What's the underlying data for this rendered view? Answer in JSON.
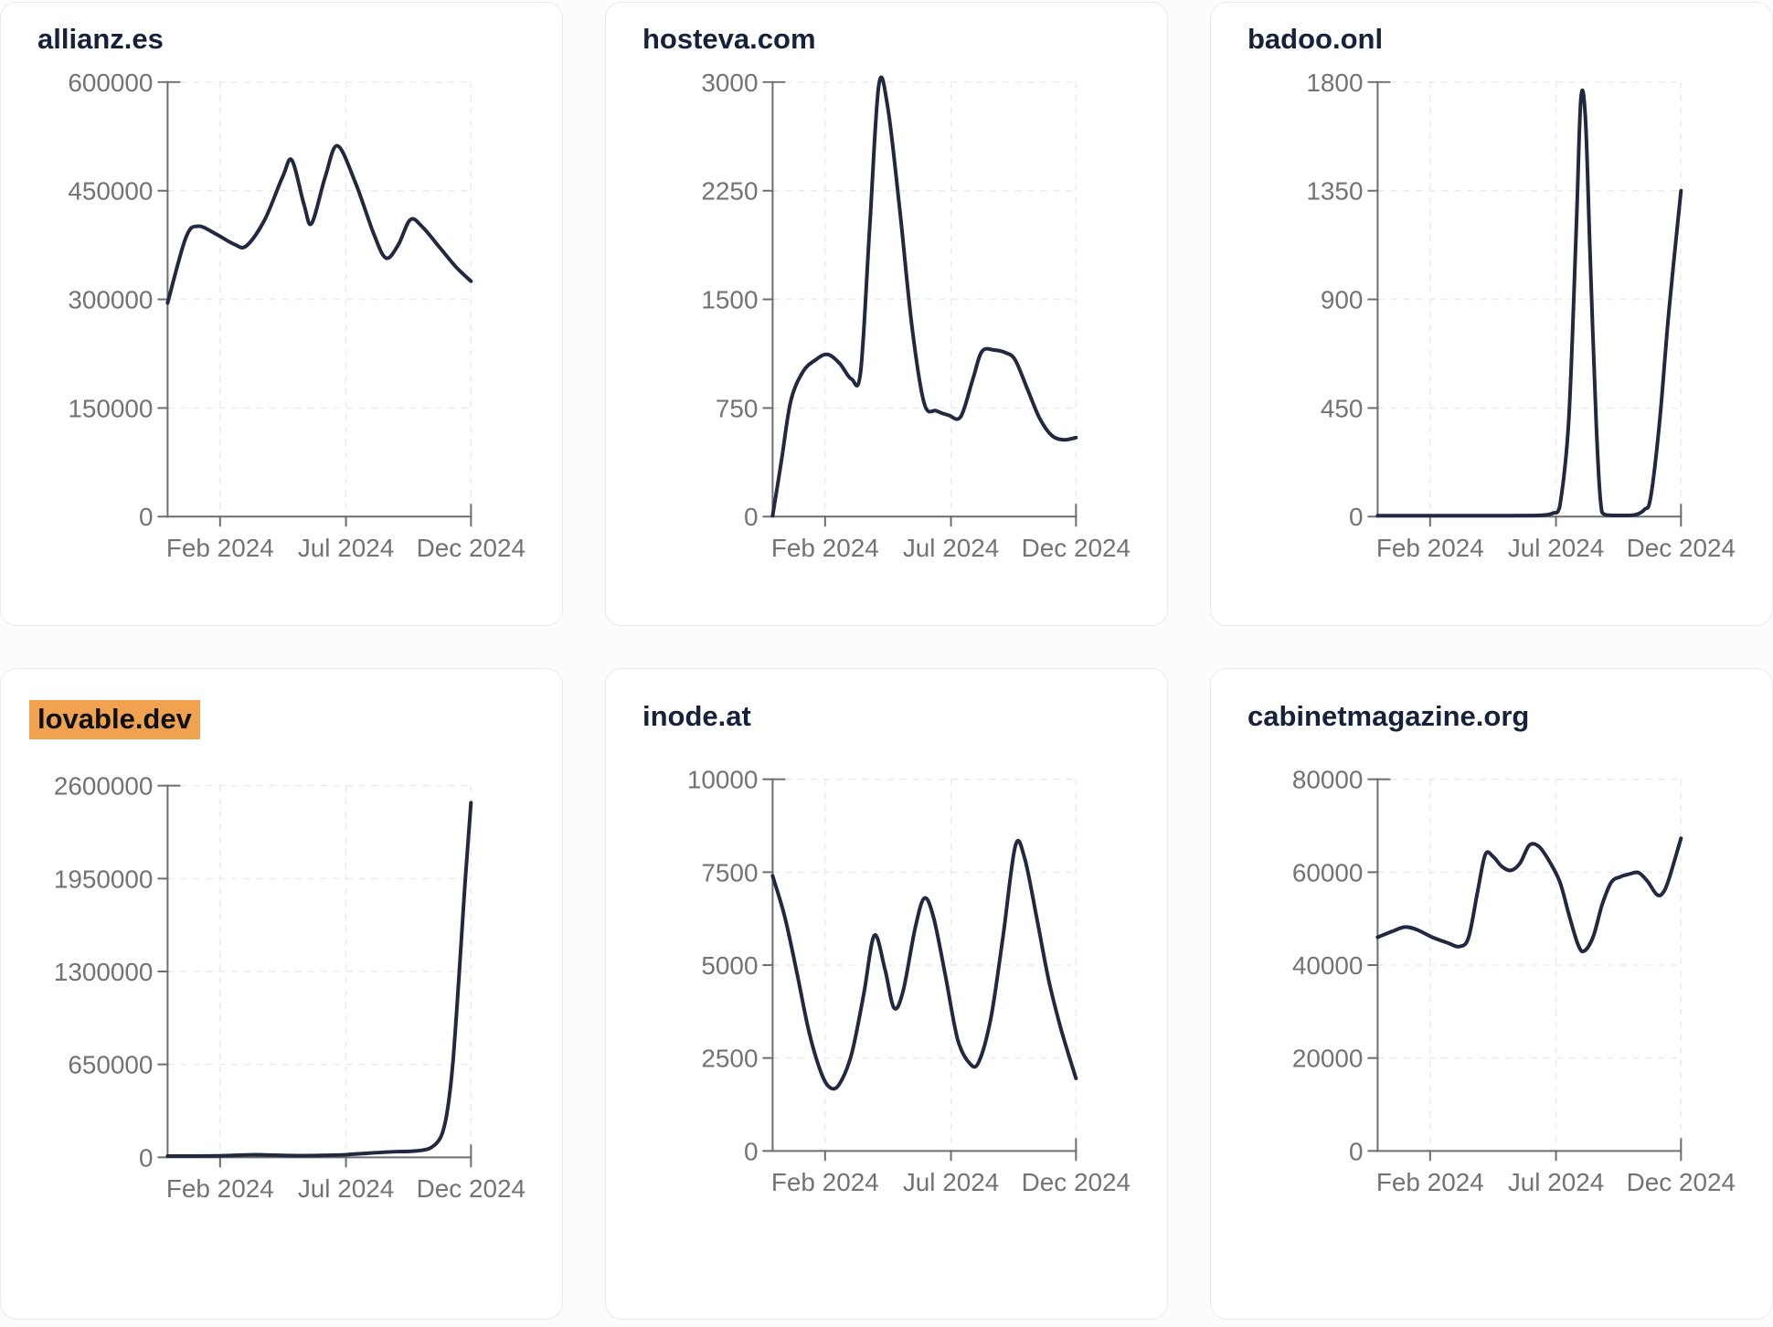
{
  "page": {
    "background": "#fcfcfd",
    "card_background": "#ffffff",
    "card_border_color": "#e8eaf2",
    "title_color": "#16213b",
    "highlight_color": "#f0a24f",
    "series_color": "#222840",
    "axis_color": "#6d6d6d",
    "tick_label_color": "#737373",
    "x_tick_labels": [
      "Feb 2024",
      "Jul 2024",
      "Dec 2024"
    ]
  },
  "chart_data": [
    {
      "type": "line",
      "title": "allianz.es",
      "highlighted": false,
      "xlabel": "",
      "ylabel": "",
      "ylim": [
        0,
        600000
      ],
      "y_ticks": [
        0,
        150000,
        300000,
        450000,
        600000
      ],
      "x_ticks": [
        {
          "label": "Feb 2024",
          "f": 0.173
        },
        {
          "label": "Jul 2024",
          "f": 0.588
        },
        {
          "label": "Dec 2024",
          "f": 1.0
        }
      ],
      "grid": true,
      "legend": "none",
      "points": [
        [
          0.0,
          295000
        ],
        [
          0.06,
          385000
        ],
        [
          0.1,
          401000
        ],
        [
          0.16,
          390000
        ],
        [
          0.22,
          376000
        ],
        [
          0.26,
          374000
        ],
        [
          0.32,
          410000
        ],
        [
          0.38,
          470000
        ],
        [
          0.41,
          492000
        ],
        [
          0.45,
          430000
        ],
        [
          0.475,
          405000
        ],
        [
          0.52,
          470000
        ],
        [
          0.56,
          512000
        ],
        [
          0.62,
          460000
        ],
        [
          0.68,
          390000
        ],
        [
          0.72,
          357000
        ],
        [
          0.76,
          375000
        ],
        [
          0.8,
          410000
        ],
        [
          0.84,
          400000
        ],
        [
          0.9,
          370000
        ],
        [
          0.95,
          345000
        ],
        [
          1.0,
          325000
        ]
      ]
    },
    {
      "type": "line",
      "title": "hosteva.com",
      "highlighted": false,
      "xlabel": "",
      "ylabel": "",
      "ylim": [
        0,
        3000
      ],
      "y_ticks": [
        0,
        750,
        1500,
        2250,
        3000
      ],
      "x_ticks": [
        {
          "label": "Feb 2024",
          "f": 0.173
        },
        {
          "label": "Jul 2024",
          "f": 0.588
        },
        {
          "label": "Dec 2024",
          "f": 1.0
        }
      ],
      "grid": true,
      "legend": "none",
      "points": [
        [
          0.0,
          0
        ],
        [
          0.03,
          400
        ],
        [
          0.06,
          800
        ],
        [
          0.1,
          1000
        ],
        [
          0.14,
          1080
        ],
        [
          0.18,
          1120
        ],
        [
          0.22,
          1060
        ],
        [
          0.26,
          950
        ],
        [
          0.29,
          1000
        ],
        [
          0.32,
          2000
        ],
        [
          0.35,
          2980
        ],
        [
          0.38,
          2820
        ],
        [
          0.42,
          2100
        ],
        [
          0.46,
          1300
        ],
        [
          0.5,
          780
        ],
        [
          0.54,
          730
        ],
        [
          0.58,
          700
        ],
        [
          0.62,
          690
        ],
        [
          0.66,
          950
        ],
        [
          0.69,
          1140
        ],
        [
          0.73,
          1150
        ],
        [
          0.77,
          1130
        ],
        [
          0.8,
          1080
        ],
        [
          0.84,
          880
        ],
        [
          0.88,
          680
        ],
        [
          0.92,
          560
        ],
        [
          0.96,
          530
        ],
        [
          1.0,
          545
        ]
      ]
    },
    {
      "type": "line",
      "title": "badoo.onl",
      "highlighted": false,
      "xlabel": "",
      "ylabel": "",
      "ylim": [
        0,
        1800
      ],
      "y_ticks": [
        0,
        450,
        900,
        1350,
        1800
      ],
      "x_ticks": [
        {
          "label": "Feb 2024",
          "f": 0.173
        },
        {
          "label": "Jul 2024",
          "f": 0.588
        },
        {
          "label": "Dec 2024",
          "f": 1.0
        }
      ],
      "grid": true,
      "legend": "none",
      "points": [
        [
          0.0,
          3
        ],
        [
          0.1,
          3
        ],
        [
          0.2,
          3
        ],
        [
          0.3,
          3
        ],
        [
          0.4,
          3
        ],
        [
          0.5,
          4
        ],
        [
          0.55,
          6
        ],
        [
          0.58,
          15
        ],
        [
          0.6,
          40
        ],
        [
          0.63,
          400
        ],
        [
          0.655,
          1200
        ],
        [
          0.67,
          1730
        ],
        [
          0.685,
          1650
        ],
        [
          0.7,
          1100
        ],
        [
          0.72,
          400
        ],
        [
          0.735,
          60
        ],
        [
          0.75,
          8
        ],
        [
          0.8,
          5
        ],
        [
          0.85,
          8
        ],
        [
          0.88,
          30
        ],
        [
          0.9,
          80
        ],
        [
          0.93,
          400
        ],
        [
          0.96,
          850
        ],
        [
          1.0,
          1350
        ]
      ]
    },
    {
      "type": "line",
      "title": "lovable.dev",
      "highlighted": true,
      "xlabel": "",
      "ylabel": "",
      "ylim": [
        0,
        2600000
      ],
      "y_ticks": [
        0,
        650000,
        1300000,
        1950000,
        2600000
      ],
      "x_ticks": [
        {
          "label": "Feb 2024",
          "f": 0.173
        },
        {
          "label": "Jul 2024",
          "f": 0.588
        },
        {
          "label": "Dec 2024",
          "f": 1.0
        }
      ],
      "grid": true,
      "legend": "none",
      "points": [
        [
          0.0,
          8000
        ],
        [
          0.08,
          9000
        ],
        [
          0.16,
          10000
        ],
        [
          0.22,
          14000
        ],
        [
          0.28,
          18000
        ],
        [
          0.34,
          16000
        ],
        [
          0.4,
          13000
        ],
        [
          0.46,
          12000
        ],
        [
          0.52,
          14000
        ],
        [
          0.58,
          18000
        ],
        [
          0.64,
          26000
        ],
        [
          0.7,
          34000
        ],
        [
          0.76,
          40000
        ],
        [
          0.8,
          42000
        ],
        [
          0.84,
          50000
        ],
        [
          0.87,
          70000
        ],
        [
          0.9,
          140000
        ],
        [
          0.92,
          300000
        ],
        [
          0.94,
          650000
        ],
        [
          0.96,
          1250000
        ],
        [
          0.98,
          1900000
        ],
        [
          1.0,
          2480000
        ]
      ]
    },
    {
      "type": "line",
      "title": "inode.at",
      "highlighted": false,
      "xlabel": "",
      "ylabel": "",
      "ylim": [
        0,
        10000
      ],
      "y_ticks": [
        0,
        2500,
        5000,
        7500,
        10000
      ],
      "x_ticks": [
        {
          "label": "Feb 2024",
          "f": 0.173
        },
        {
          "label": "Jul 2024",
          "f": 0.588
        },
        {
          "label": "Dec 2024",
          "f": 1.0
        }
      ],
      "grid": true,
      "legend": "none",
      "points": [
        [
          0.0,
          7400
        ],
        [
          0.04,
          6300
        ],
        [
          0.08,
          4800
        ],
        [
          0.12,
          3200
        ],
        [
          0.16,
          2100
        ],
        [
          0.19,
          1700
        ],
        [
          0.22,
          1800
        ],
        [
          0.26,
          2600
        ],
        [
          0.3,
          4200
        ],
        [
          0.335,
          5800
        ],
        [
          0.37,
          4900
        ],
        [
          0.4,
          3850
        ],
        [
          0.43,
          4300
        ],
        [
          0.47,
          6000
        ],
        [
          0.5,
          6800
        ],
        [
          0.53,
          6300
        ],
        [
          0.57,
          4700
        ],
        [
          0.61,
          3000
        ],
        [
          0.65,
          2350
        ],
        [
          0.68,
          2400
        ],
        [
          0.72,
          3600
        ],
        [
          0.76,
          5800
        ],
        [
          0.8,
          8200
        ],
        [
          0.83,
          7900
        ],
        [
          0.87,
          6300
        ],
        [
          0.91,
          4600
        ],
        [
          0.95,
          3300
        ],
        [
          1.0,
          1950
        ]
      ]
    },
    {
      "type": "line",
      "title": "cabinetmagazine.org",
      "highlighted": false,
      "xlabel": "",
      "ylabel": "",
      "ylim": [
        0,
        80000
      ],
      "y_ticks": [
        0,
        20000,
        40000,
        60000,
        80000
      ],
      "x_ticks": [
        {
          "label": "Feb 2024",
          "f": 0.173
        },
        {
          "label": "Jul 2024",
          "f": 0.588
        },
        {
          "label": "Dec 2024",
          "f": 1.0
        }
      ],
      "grid": true,
      "legend": "none",
      "points": [
        [
          0.0,
          46000
        ],
        [
          0.05,
          47300
        ],
        [
          0.09,
          48200
        ],
        [
          0.13,
          47600
        ],
        [
          0.18,
          46000
        ],
        [
          0.23,
          44800
        ],
        [
          0.27,
          44000
        ],
        [
          0.3,
          46000
        ],
        [
          0.33,
          56000
        ],
        [
          0.355,
          63800
        ],
        [
          0.38,
          63400
        ],
        [
          0.41,
          61200
        ],
        [
          0.44,
          60400
        ],
        [
          0.47,
          62000
        ],
        [
          0.5,
          65800
        ],
        [
          0.53,
          65600
        ],
        [
          0.56,
          63000
        ],
        [
          0.6,
          58000
        ],
        [
          0.63,
          51000
        ],
        [
          0.66,
          44500
        ],
        [
          0.68,
          43000
        ],
        [
          0.71,
          46000
        ],
        [
          0.74,
          53000
        ],
        [
          0.77,
          57800
        ],
        [
          0.8,
          59000
        ],
        [
          0.83,
          59600
        ],
        [
          0.86,
          59900
        ],
        [
          0.89,
          58000
        ],
        [
          0.92,
          55200
        ],
        [
          0.94,
          55500
        ],
        [
          0.96,
          58500
        ],
        [
          1.0,
          67300
        ]
      ]
    }
  ]
}
